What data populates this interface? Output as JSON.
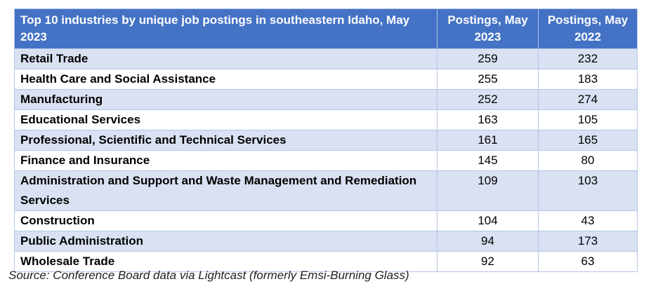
{
  "table": {
    "header": [
      "Top 10 industries by unique job postings in southeastern Idaho, May 2023",
      "Postings, May 2023",
      "Postings, May 2022"
    ],
    "rows": [
      [
        "Retail Trade",
        259,
        232
      ],
      [
        "Health Care and Social Assistance",
        255,
        183
      ],
      [
        "Manufacturing",
        252,
        274
      ],
      [
        "Educational Services",
        163,
        105
      ],
      [
        "Professional, Scientific and Technical Services",
        161,
        165
      ],
      [
        "Finance and Insurance",
        145,
        80
      ],
      [
        "Administration and Support and Waste Management and Remediation Services",
        109,
        103
      ],
      [
        "Construction",
        104,
        43
      ],
      [
        "Public Administration",
        94,
        173
      ],
      [
        "Wholesale Trade",
        92,
        63
      ]
    ]
  },
  "source": "Source: Conference Board data via Lightcast (formerly Emsi-Burning Glass)"
}
